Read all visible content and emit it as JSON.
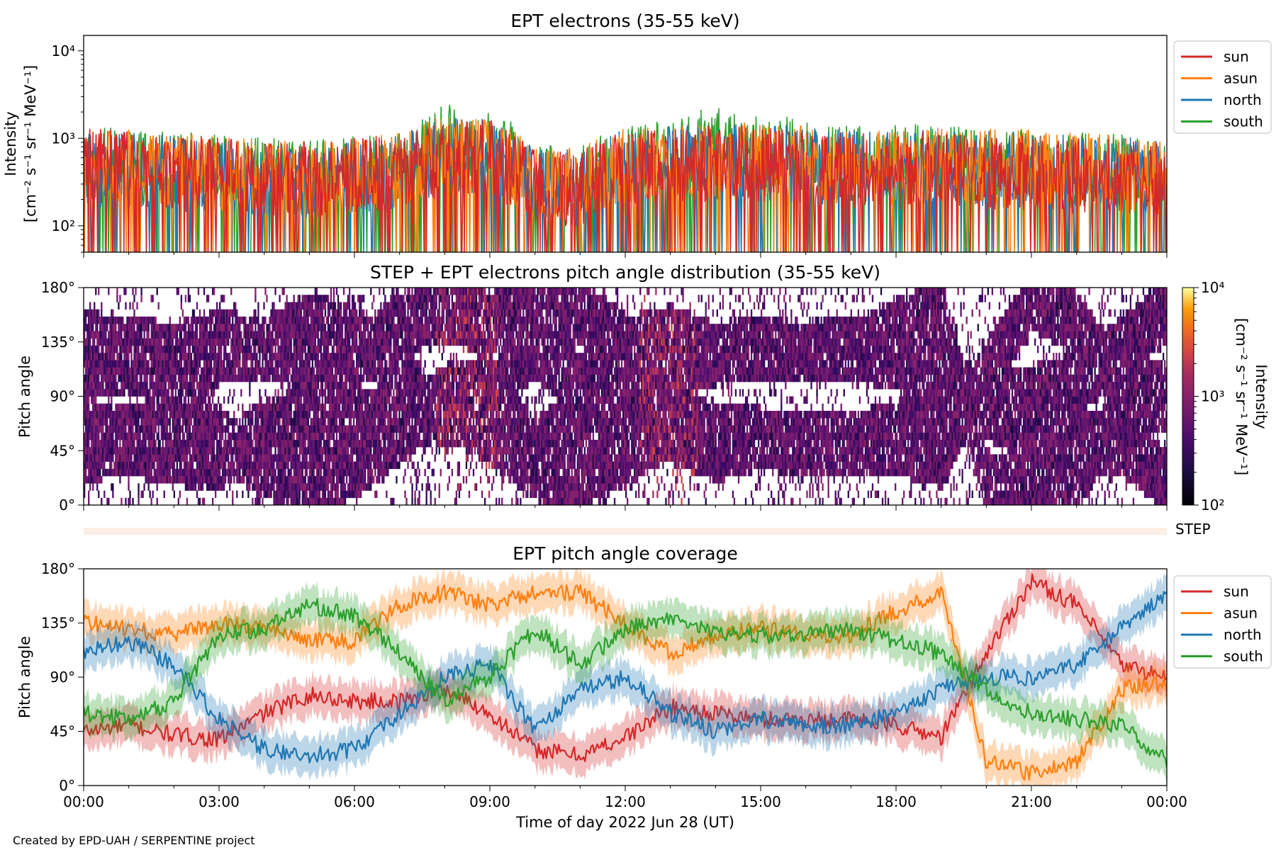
{
  "chart_data": [
    {
      "type": "line",
      "title": "EPT electrons (35-55 keV)",
      "ylabel": [
        "Intensity",
        "[cm⁻² s⁻¹ sr⁻¹ MeV⁻¹]"
      ],
      "yscale": "log",
      "ylim": [
        50,
        15000
      ],
      "yticks": [
        {
          "value": 100,
          "label": "10²"
        },
        {
          "value": 1000,
          "label": "10³"
        },
        {
          "value": 10000,
          "label": "10⁴"
        }
      ],
      "legend_position": "outside-right",
      "series": [
        {
          "name": "sun",
          "color": "#d62728",
          "x": [
            "00:00",
            "01:00",
            "02:00",
            "03:00",
            "04:00",
            "05:00",
            "06:00",
            "07:00",
            "08:00",
            "09:00",
            "10:00",
            "11:00",
            "12:00",
            "13:00",
            "14:00",
            "15:00",
            "16:00",
            "17:00",
            "18:00",
            "19:00",
            "20:00",
            "21:00",
            "22:00",
            "23:00",
            "24:00"
          ],
          "values": [
            500,
            450,
            420,
            380,
            350,
            330,
            380,
            400,
            550,
            600,
            280,
            260,
            450,
            500,
            520,
            520,
            480,
            420,
            420,
            450,
            420,
            400,
            380,
            360,
            350
          ]
        },
        {
          "name": "asun",
          "color": "#ff7f0e",
          "x": [
            "00:00",
            "01:00",
            "02:00",
            "03:00",
            "04:00",
            "05:00",
            "06:00",
            "07:00",
            "08:00",
            "09:00",
            "10:00",
            "11:00",
            "12:00",
            "13:00",
            "14:00",
            "15:00",
            "16:00",
            "17:00",
            "18:00",
            "19:00",
            "20:00",
            "21:00",
            "22:00",
            "23:00",
            "24:00"
          ],
          "values": [
            480,
            460,
            430,
            390,
            360,
            340,
            390,
            420,
            700,
            650,
            300,
            280,
            480,
            520,
            560,
            560,
            520,
            470,
            480,
            500,
            480,
            460,
            430,
            400,
            380
          ]
        },
        {
          "name": "north",
          "color": "#1f77b4",
          "x": [
            "00:00",
            "01:00",
            "02:00",
            "03:00",
            "04:00",
            "05:00",
            "06:00",
            "07:00",
            "08:00",
            "09:00",
            "10:00",
            "11:00",
            "12:00",
            "13:00",
            "14:00",
            "15:00",
            "16:00",
            "17:00",
            "18:00",
            "19:00",
            "20:00",
            "21:00",
            "22:00",
            "23:00",
            "24:00"
          ],
          "values": [
            450,
            430,
            400,
            370,
            340,
            320,
            370,
            400,
            650,
            640,
            290,
            270,
            470,
            510,
            540,
            540,
            500,
            450,
            450,
            470,
            450,
            430,
            400,
            380,
            360
          ]
        },
        {
          "name": "south",
          "color": "#2ca02c",
          "x": [
            "00:00",
            "01:00",
            "02:00",
            "03:00",
            "04:00",
            "05:00",
            "06:00",
            "07:00",
            "08:00",
            "09:00",
            "10:00",
            "11:00",
            "12:00",
            "13:00",
            "14:00",
            "15:00",
            "16:00",
            "17:00",
            "18:00",
            "19:00",
            "20:00",
            "21:00",
            "22:00",
            "23:00",
            "24:00"
          ],
          "values": [
            520,
            480,
            440,
            400,
            370,
            350,
            400,
            450,
            900,
            800,
            320,
            300,
            520,
            620,
            900,
            700,
            600,
            520,
            520,
            540,
            500,
            470,
            440,
            420,
            400
          ]
        }
      ]
    },
    {
      "type": "heatmap",
      "title": "STEP + EPT electrons pitch angle distribution (35-55 keV)",
      "ylabel": "Pitch angle",
      "ylim": [
        0,
        180
      ],
      "yticks": [
        {
          "value": 0,
          "label": "0°"
        },
        {
          "value": 45,
          "label": "45°"
        },
        {
          "value": 90,
          "label": "90°"
        },
        {
          "value": 135,
          "label": "135°"
        },
        {
          "value": 180,
          "label": "180°"
        }
      ],
      "colorbar": {
        "label": [
          "Intensity",
          "[cm⁻² s⁻¹ sr⁻¹ MeV⁻¹]"
        ],
        "scale": "log",
        "range": [
          100,
          10000
        ],
        "ticks": [
          {
            "value": 100,
            "label": "10²"
          },
          {
            "value": 1000,
            "label": "10³"
          },
          {
            "value": 10000,
            "label": "10⁴"
          }
        ],
        "colormap": "inferno-like"
      }
    },
    {
      "type": "bar",
      "label": "STEP",
      "color": "#fbeee6"
    },
    {
      "type": "area",
      "title": "EPT pitch angle coverage",
      "ylabel": "Pitch angle",
      "xlabel": "Time of day 2022 Jun 28 (UT)",
      "ylim": [
        0,
        180
      ],
      "yticks": [
        {
          "value": 0,
          "label": "0°"
        },
        {
          "value": 45,
          "label": "45°"
        },
        {
          "value": 90,
          "label": "90°"
        },
        {
          "value": 135,
          "label": "135°"
        },
        {
          "value": 180,
          "label": "180°"
        }
      ],
      "xticks": [
        "00:00",
        "03:00",
        "06:00",
        "09:00",
        "12:00",
        "15:00",
        "18:00",
        "21:00",
        "00:00"
      ],
      "xlim": [
        "00:00",
        "24:00"
      ],
      "legend_position": "outside-right",
      "band_halfwidth_deg": 15,
      "series": [
        {
          "name": "sun",
          "color": "#d62728",
          "x": [
            "00:00",
            "01:00",
            "02:00",
            "03:00",
            "04:00",
            "05:00",
            "06:00",
            "07:00",
            "08:00",
            "09:00",
            "10:00",
            "11:00",
            "12:00",
            "13:00",
            "14:00",
            "15:00",
            "16:00",
            "17:00",
            "18:00",
            "19:00",
            "20:00",
            "21:00",
            "22:00",
            "23:00",
            "24:00"
          ],
          "values": [
            45,
            50,
            42,
            38,
            60,
            75,
            70,
            70,
            80,
            60,
            30,
            25,
            40,
            65,
            60,
            55,
            55,
            55,
            50,
            40,
            110,
            170,
            150,
            100,
            90
          ]
        },
        {
          "name": "asun",
          "color": "#ff7f0e",
          "x": [
            "00:00",
            "01:00",
            "02:00",
            "03:00",
            "04:00",
            "05:00",
            "06:00",
            "07:00",
            "08:00",
            "09:00",
            "10:00",
            "11:00",
            "12:00",
            "13:00",
            "14:00",
            "15:00",
            "16:00",
            "17:00",
            "18:00",
            "19:00",
            "20:00",
            "21:00",
            "22:00",
            "23:00",
            "24:00"
          ],
          "values": [
            135,
            130,
            125,
            135,
            130,
            120,
            120,
            150,
            160,
            150,
            160,
            160,
            135,
            110,
            125,
            130,
            125,
            125,
            145,
            160,
            20,
            10,
            20,
            80,
            85
          ]
        },
        {
          "name": "north",
          "color": "#1f77b4",
          "x": [
            "00:00",
            "01:00",
            "02:00",
            "03:00",
            "04:00",
            "05:00",
            "06:00",
            "07:00",
            "08:00",
            "09:00",
            "10:00",
            "11:00",
            "12:00",
            "13:00",
            "14:00",
            "15:00",
            "16:00",
            "17:00",
            "18:00",
            "19:00",
            "20:00",
            "21:00",
            "22:00",
            "23:00",
            "24:00"
          ],
          "values": [
            110,
            120,
            100,
            55,
            30,
            25,
            30,
            60,
            90,
            100,
            45,
            80,
            90,
            60,
            45,
            55,
            50,
            50,
            60,
            80,
            90,
            90,
            100,
            130,
            160
          ]
        },
        {
          "name": "south",
          "color": "#2ca02c",
          "x": [
            "00:00",
            "01:00",
            "02:00",
            "03:00",
            "04:00",
            "05:00",
            "06:00",
            "07:00",
            "08:00",
            "09:00",
            "10:00",
            "11:00",
            "12:00",
            "13:00",
            "14:00",
            "15:00",
            "16:00",
            "17:00",
            "18:00",
            "19:00",
            "20:00",
            "21:00",
            "22:00",
            "23:00",
            "24:00"
          ],
          "values": [
            60,
            55,
            70,
            125,
            130,
            150,
            140,
            110,
            70,
            90,
            130,
            100,
            130,
            140,
            125,
            125,
            125,
            130,
            120,
            110,
            80,
            60,
            55,
            50,
            20
          ]
        }
      ]
    }
  ],
  "footer": {
    "credit": "Created by EPD-UAH / SERPENTINE project"
  }
}
